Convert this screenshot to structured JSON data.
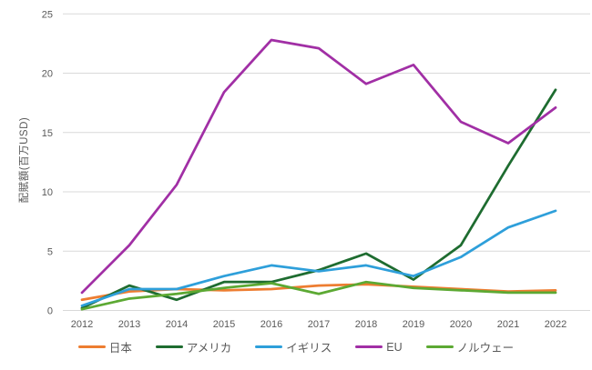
{
  "chart_data": {
    "type": "line",
    "title": "",
    "xlabel": "",
    "ylabel": "配賦額(百万USD)",
    "categories": [
      "2012",
      "2013",
      "2014",
      "2015",
      "2016",
      "2017",
      "2018",
      "2019",
      "2020",
      "2021",
      "2022"
    ],
    "series": [
      {
        "key": "japan",
        "name": "日本",
        "color": "#ED7D31",
        "values": [
          0.9,
          1.6,
          1.8,
          1.7,
          1.8,
          2.1,
          2.2,
          2.0,
          1.8,
          1.6,
          1.7
        ]
      },
      {
        "key": "usa",
        "name": "アメリカ",
        "color": "#1E6C30",
        "values": [
          0.2,
          2.1,
          0.9,
          2.4,
          2.4,
          3.4,
          4.8,
          2.6,
          5.5,
          12.2,
          18.6
        ]
      },
      {
        "key": "uk",
        "name": "イギリス",
        "color": "#2E9FDA",
        "values": [
          0.4,
          1.8,
          1.8,
          2.9,
          3.8,
          3.3,
          3.8,
          2.9,
          4.5,
          7.0,
          8.4
        ]
      },
      {
        "key": "eu",
        "name": "EU",
        "color": "#A12FA5",
        "values": [
          1.5,
          5.5,
          10.6,
          18.4,
          22.8,
          22.1,
          19.1,
          20.7,
          15.9,
          14.1,
          17.1
        ]
      },
      {
        "key": "norway",
        "name": "ノルウェー",
        "color": "#5CA933",
        "values": [
          0.1,
          1.0,
          1.4,
          1.9,
          2.3,
          1.4,
          2.4,
          1.9,
          1.7,
          1.5,
          1.5
        ]
      }
    ],
    "ylim": [
      0,
      25
    ],
    "yticks": [
      0,
      5,
      10,
      15,
      20,
      25
    ],
    "grid": true,
    "gridline_color": "#D9D9D9",
    "legend_position": "bottom"
  }
}
